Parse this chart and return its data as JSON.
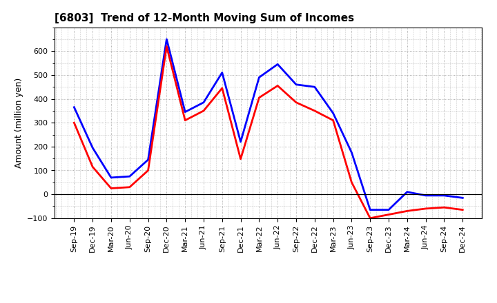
{
  "title": "[6803]  Trend of 12-Month Moving Sum of Incomes",
  "ylabel": "Amount (million yen)",
  "x_labels": [
    "Sep-19",
    "Dec-19",
    "Mar-20",
    "Jun-20",
    "Sep-20",
    "Dec-20",
    "Mar-21",
    "Jun-21",
    "Sep-21",
    "Dec-21",
    "Mar-22",
    "Jun-22",
    "Sep-22",
    "Dec-22",
    "Mar-23",
    "Jun-23",
    "Sep-23",
    "Dec-23",
    "Mar-24",
    "Jun-24",
    "Sep-24",
    "Dec-24"
  ],
  "ordinary_income": [
    365,
    195,
    70,
    75,
    145,
    650,
    345,
    385,
    510,
    220,
    490,
    545,
    460,
    450,
    340,
    175,
    -65,
    -65,
    10,
    -5,
    -5,
    -15
  ],
  "net_income": [
    300,
    115,
    25,
    30,
    100,
    620,
    310,
    350,
    445,
    148,
    405,
    455,
    385,
    350,
    310,
    50,
    -100,
    -85,
    -70,
    -60,
    -55,
    -65
  ],
  "ordinary_color": "#0000FF",
  "net_color": "#FF0000",
  "ylim": [
    -100,
    700
  ],
  "yticks": [
    -100,
    0,
    100,
    200,
    300,
    400,
    500,
    600
  ],
  "background_color": "#FFFFFF",
  "grid_color": "#999999",
  "line_width": 2.0,
  "title_fontsize": 11,
  "tick_fontsize": 8,
  "ylabel_fontsize": 9
}
